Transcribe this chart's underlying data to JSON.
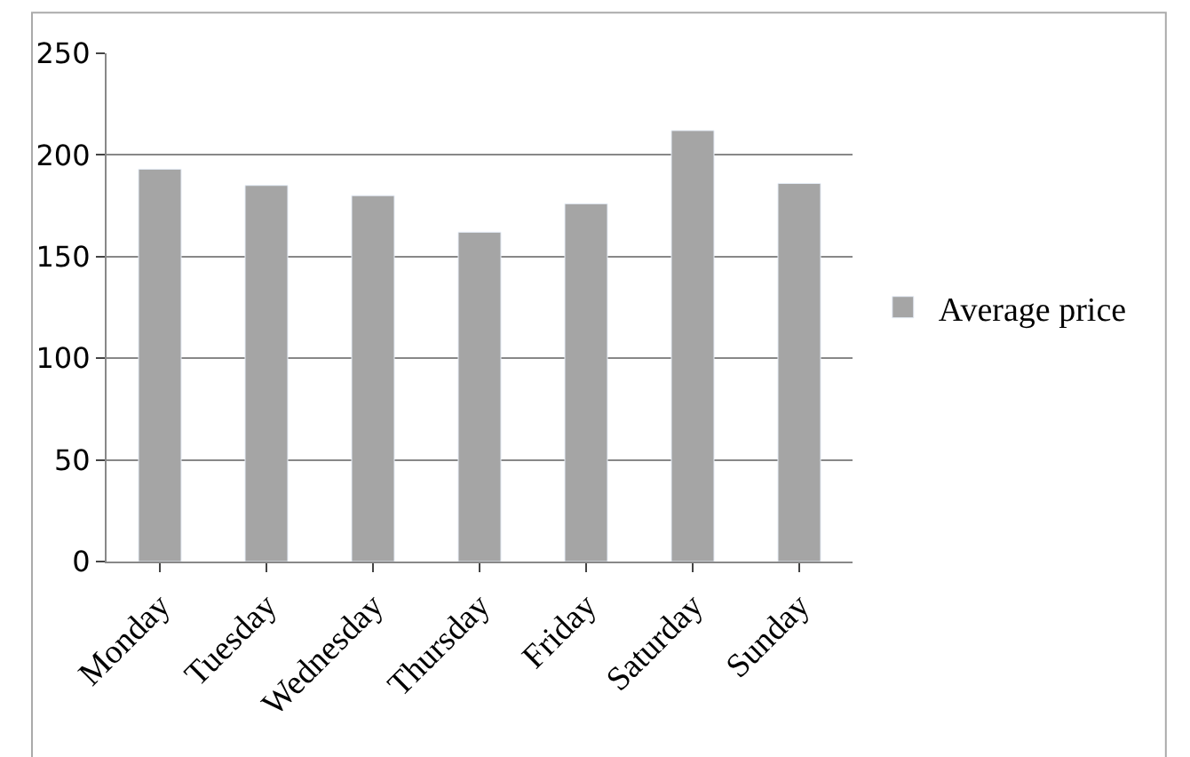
{
  "chart_data": {
    "type": "bar",
    "categories": [
      "Monday",
      "Tuesday",
      "Wednesday",
      "Thursday",
      "Friday",
      "Saturday",
      "Sunday"
    ],
    "series": [
      {
        "name": "Average price",
        "color": "#a5a5a5",
        "values": [
          193,
          185,
          180,
          162,
          176,
          212,
          186
        ]
      }
    ],
    "ylim": [
      0,
      250
    ],
    "yticks": [
      0,
      50,
      100,
      150,
      200,
      250
    ],
    "grid": "y",
    "legend": "right"
  }
}
